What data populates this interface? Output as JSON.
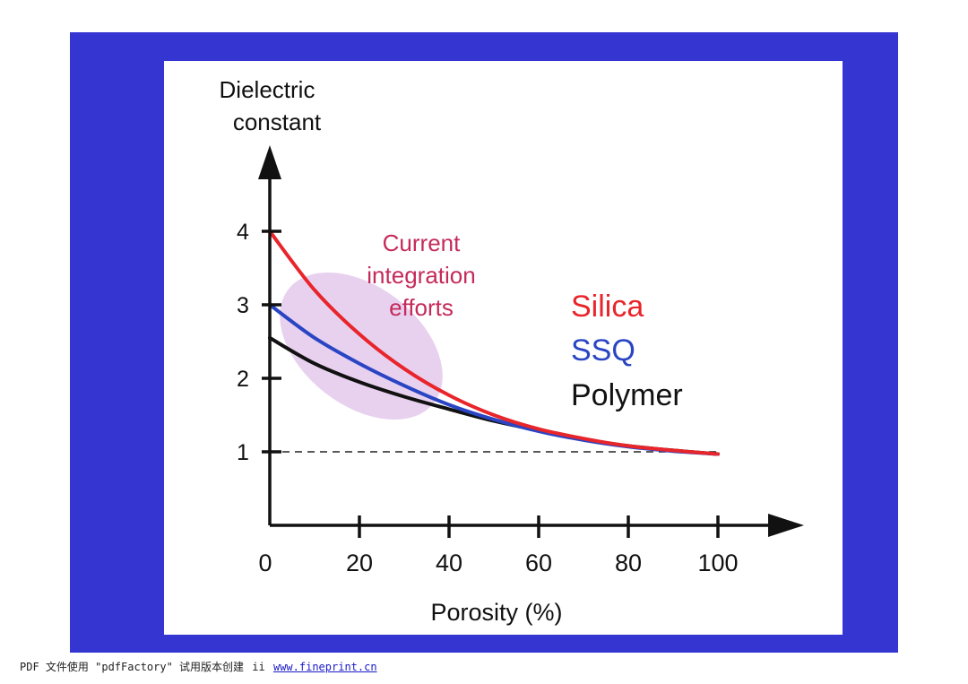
{
  "page": {
    "background_color": "#3535d2",
    "panel_color": "#ffffff"
  },
  "chart_data": {
    "type": "line",
    "title": "",
    "xlabel": "Porosity (%)",
    "ylabel": "Dielectric constant",
    "ylabel_lines": [
      "Dielectric",
      "constant"
    ],
    "xlim": [
      0,
      100
    ],
    "ylim": [
      0,
      4
    ],
    "x_ticks": [
      0,
      20,
      40,
      60,
      80,
      100
    ],
    "y_ticks": [
      1,
      2,
      3,
      4
    ],
    "x_tick_labels": [
      "0",
      "20",
      "40",
      "60",
      "80",
      "100"
    ],
    "y_tick_labels": [
      "1",
      "2",
      "3",
      "4"
    ],
    "grid": false,
    "legend_position": "right",
    "series": [
      {
        "name": "Silica",
        "color": "#e8252b",
        "x": [
          0,
          10,
          20,
          30,
          40,
          50,
          60,
          70,
          80,
          90,
          100
        ],
        "y": [
          4.0,
          3.2,
          2.6,
          2.13,
          1.77,
          1.5,
          1.31,
          1.18,
          1.08,
          1.02,
          0.97
        ]
      },
      {
        "name": "SSQ",
        "color": "#2a45c4",
        "x": [
          0,
          10,
          20,
          30,
          40,
          50,
          60,
          70,
          80,
          90,
          100
        ],
        "y": [
          3.0,
          2.55,
          2.2,
          1.9,
          1.64,
          1.44,
          1.28,
          1.16,
          1.07,
          1.01,
          0.97
        ]
      },
      {
        "name": "Polymer",
        "color": "#111111",
        "x": [
          0,
          10,
          20,
          30,
          40,
          50,
          60,
          70,
          80,
          90,
          100
        ],
        "y": [
          2.55,
          2.2,
          1.95,
          1.75,
          1.58,
          1.42,
          1.29,
          1.17,
          1.08,
          1.02,
          0.97
        ]
      }
    ],
    "reference_line": {
      "y": 1,
      "style": "dashed",
      "color": "#222222"
    },
    "annotations": {
      "region_label_lines": [
        "Current",
        "integration",
        "efforts"
      ],
      "region_label_color": "#c42b5a",
      "region_fill_color": "#e4c9ec"
    }
  },
  "footer": {
    "prefix": "PDF 文件使用 \"pdfFactory\" 试用版本创建",
    "middle": "ii",
    "link_text": "www.fineprint.cn",
    "link_color": "#1a1ac8"
  }
}
